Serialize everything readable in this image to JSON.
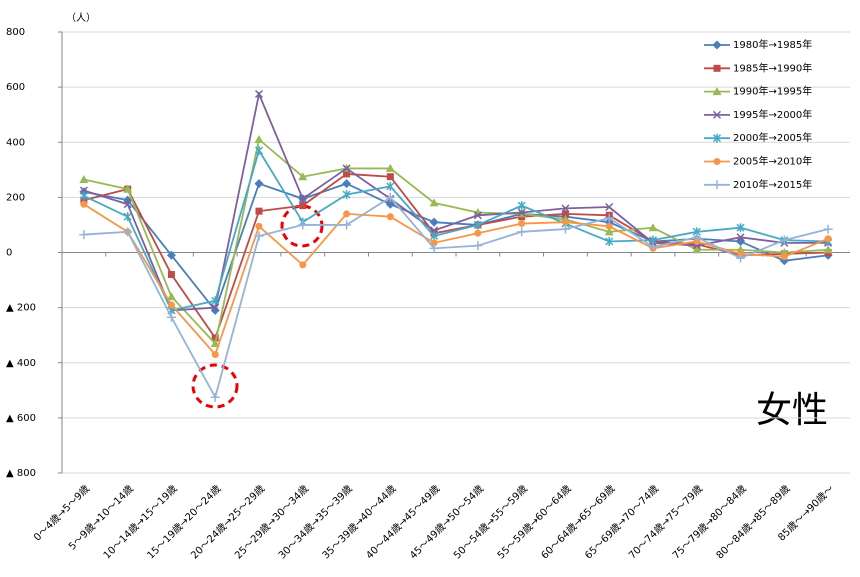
{
  "chart_data": {
    "type": "line",
    "unit_label": "（人）",
    "annotation": "女性",
    "categories": [
      "0～4歳→5～9歳",
      "5～9歳→10～14歳",
      "10～14歳→15～19歳",
      "15～19歳→20～24歳",
      "20～24歳→25～29歳",
      "25～29歳→30～34歳",
      "30～34歳→35～39歳",
      "35～39歳→40～44歳",
      "40～44歳→45～49歳",
      "45～49歳→50～54歳",
      "50～54歳→55～59歳",
      "55～59歳→60～64歳",
      "60～64歳→65～69歳",
      "65～69歳→70～74歳",
      "70～74歳→75～79歳",
      "75～79歳→80～84歳",
      "80～84歳→85～89歳",
      "85歳～→90歳～"
    ],
    "series": [
      {
        "name": "1980年→1985年",
        "color": "#4a7ebb",
        "marker": "diamond",
        "values": [
          220,
          190,
          -10,
          -210,
          250,
          195,
          250,
          175,
          110,
          100,
          140,
          130,
          110,
          40,
          50,
          40,
          -30,
          -10
        ]
      },
      {
        "name": "1985年→1990年",
        "color": "#be4b48",
        "marker": "square",
        "values": [
          190,
          230,
          -80,
          -310,
          150,
          170,
          285,
          275,
          70,
          100,
          130,
          140,
          135,
          40,
          30,
          -10,
          -5,
          0
        ]
      },
      {
        "name": "1990年→1995年",
        "color": "#98b954",
        "marker": "triangle",
        "values": [
          265,
          230,
          -160,
          -330,
          410,
          275,
          305,
          305,
          180,
          145,
          140,
          120,
          75,
          90,
          10,
          10,
          0,
          10
        ]
      },
      {
        "name": "1995年→2000年",
        "color": "#7d60a0",
        "marker": "x",
        "values": [
          225,
          175,
          -210,
          -200,
          575,
          195,
          305,
          195,
          80,
          135,
          145,
          160,
          165,
          35,
          25,
          55,
          35,
          35
        ]
      },
      {
        "name": "2000年→2005年",
        "color": "#46aac5",
        "marker": "star",
        "values": [
          205,
          130,
          -210,
          -175,
          370,
          110,
          210,
          240,
          60,
          100,
          170,
          105,
          40,
          45,
          75,
          90,
          45,
          40
        ]
      },
      {
        "name": "2005年→2010年",
        "color": "#f79646",
        "marker": "circle",
        "values": [
          175,
          75,
          -190,
          -370,
          95,
          -45,
          140,
          130,
          35,
          70,
          105,
          110,
          95,
          15,
          40,
          -5,
          -15,
          50
        ]
      },
      {
        "name": "2010年→2015年",
        "color": "#95b3d7",
        "marker": "plus",
        "values": [
          65,
          75,
          -235,
          -525,
          60,
          100,
          100,
          200,
          15,
          25,
          75,
          85,
          125,
          20,
          55,
          -20,
          45,
          85
        ]
      }
    ],
    "ylim": [
      -800,
      800
    ],
    "yticks": [
      {
        "value": -800,
        "label": "▲ 800"
      },
      {
        "value": -600,
        "label": "▲ 600"
      },
      {
        "value": -400,
        "label": "▲ 400"
      },
      {
        "value": -200,
        "label": "▲ 200"
      },
      0,
      200,
      400,
      600,
      800
    ],
    "grid": true
  }
}
